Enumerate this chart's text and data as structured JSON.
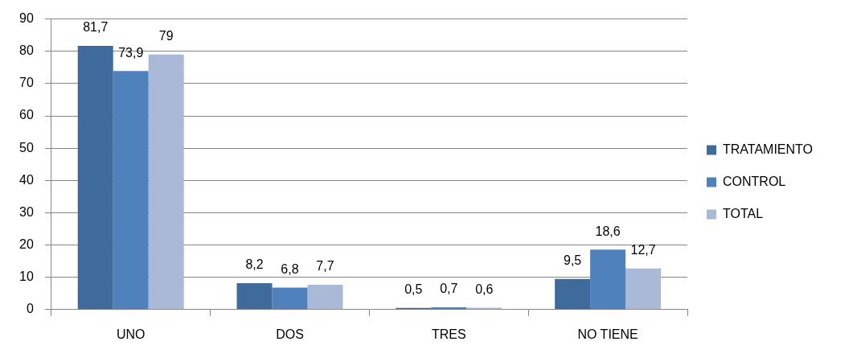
{
  "chart_data": {
    "type": "bar",
    "categories": [
      "UNO",
      "DOS",
      "TRES",
      "NO TIENE"
    ],
    "series": [
      {
        "name": "TRATAMIENTO",
        "color": "#3f6a9c",
        "values": [
          81.7,
          8.2,
          0.5,
          9.5
        ],
        "value_labels": [
          "81,7",
          "8,2",
          "0,5",
          "9,5"
        ]
      },
      {
        "name": "CONTROL",
        "color": "#4f81bd",
        "values": [
          73.9,
          6.8,
          0.7,
          18.6
        ],
        "value_labels": [
          "73,9",
          "6,8",
          "0,7",
          "18,6"
        ]
      },
      {
        "name": "TOTAL",
        "color": "#aab9d8",
        "values": [
          79,
          7.7,
          0.6,
          12.7
        ],
        "value_labels": [
          "79",
          "7,7",
          "0,6",
          "12,7"
        ]
      }
    ],
    "ylim": [
      0,
      90
    ],
    "yticks": [
      0,
      10,
      20,
      30,
      40,
      50,
      60,
      70,
      80,
      90
    ],
    "grid": "y",
    "legend": "right"
  }
}
